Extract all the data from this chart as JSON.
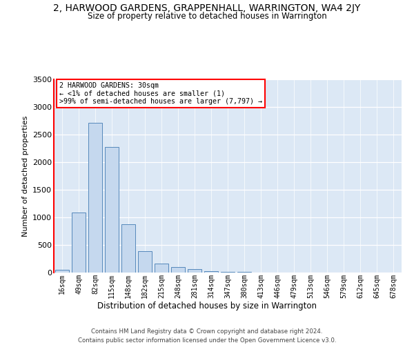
{
  "title": "2, HARWOOD GARDENS, GRAPPENHALL, WARRINGTON, WA4 2JY",
  "subtitle": "Size of property relative to detached houses in Warrington",
  "xlabel": "Distribution of detached houses by size in Warrington",
  "ylabel": "Number of detached properties",
  "bar_color": "#c5d8ee",
  "bar_edge_color": "#5588bb",
  "background_color": "#dce8f5",
  "categories": [
    "16sqm",
    "49sqm",
    "82sqm",
    "115sqm",
    "148sqm",
    "182sqm",
    "215sqm",
    "248sqm",
    "281sqm",
    "314sqm",
    "347sqm",
    "380sqm",
    "413sqm",
    "446sqm",
    "479sqm",
    "513sqm",
    "546sqm",
    "579sqm",
    "612sqm",
    "645sqm",
    "678sqm"
  ],
  "values": [
    50,
    1090,
    2710,
    2280,
    870,
    390,
    165,
    100,
    65,
    30,
    15,
    8,
    5,
    3,
    3,
    2,
    2,
    1,
    1,
    0,
    0
  ],
  "ylim_max": 3500,
  "yticks": [
    0,
    500,
    1000,
    1500,
    2000,
    2500,
    3000,
    3500
  ],
  "annotation_line1": "2 HARWOOD GARDENS: 30sqm",
  "annotation_line2": "← <1% of detached houses are smaller (1)",
  "annotation_line3": ">99% of semi-detached houses are larger (7,797) →",
  "footer_line1": "Contains HM Land Registry data © Crown copyright and database right 2024.",
  "footer_line2": "Contains public sector information licensed under the Open Government Licence v3.0."
}
